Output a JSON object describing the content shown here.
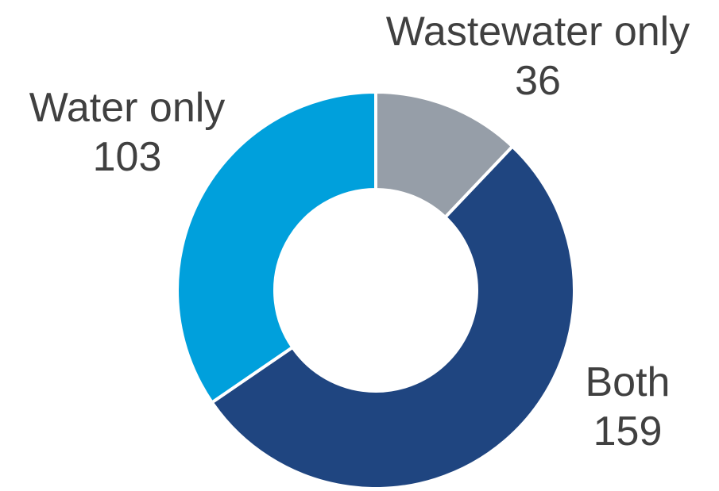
{
  "chart_data": {
    "type": "pie",
    "variant": "donut",
    "title": "",
    "start_angle_deg": 0,
    "direction": "clockwise",
    "slices": [
      {
        "label": "Wastewater only",
        "value": 36,
        "color": "#969ea8"
      },
      {
        "label": "Both",
        "value": 159,
        "color": "#1f4580"
      },
      {
        "label": "Water only",
        "value": 103,
        "color": "#00a0dc"
      }
    ]
  }
}
